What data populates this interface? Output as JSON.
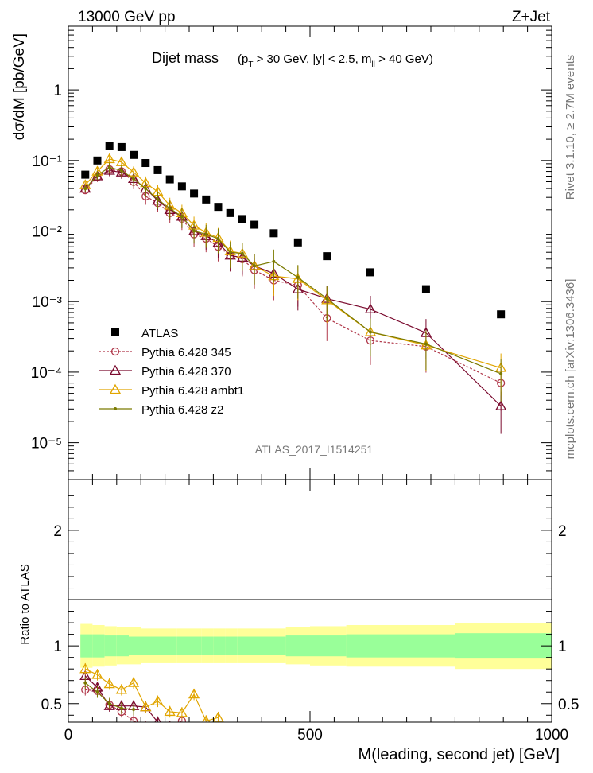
{
  "header": {
    "left": "13000 GeV pp",
    "right": "Z+Jet"
  },
  "side_labels": {
    "rivet": "Rivet 3.1.10, ≥ 2.7M events",
    "mcplots": "mcplots.cern.ch [arXiv:1306.3436]"
  },
  "analysis_id": "ATLAS_2017_I1514251",
  "colors": {
    "atlas": "#000000",
    "p345": "#b0384a",
    "p370": "#7a0a2e",
    "ambt1": "#e1a500",
    "z2": "#7a7a00",
    "band_outer": "#ffff99",
    "band_inner": "#99ff99"
  },
  "chart_data": [
    {
      "type": "scatter",
      "title_main": "Dijet mass",
      "title_cut": "(p_T > 30 GeV, |y| < 2.5, m_ll > 40 GeV)",
      "ylabel": "dσ/dM [pb/GeV]",
      "xlabel": "M(leading, second jet) [GeV]",
      "xlim": [
        0,
        1000
      ],
      "ylim": [
        3e-06,
        8
      ],
      "yscale": "log",
      "ytick_labels": [
        "10⁻⁵",
        "10⁻⁴",
        "10⁻³",
        "10⁻²",
        "10⁻¹",
        "1"
      ],
      "x": [
        35,
        60,
        85,
        110,
        135,
        160,
        185,
        210,
        235,
        260,
        285,
        310,
        335,
        360,
        385,
        425,
        475,
        535,
        625,
        740,
        895
      ],
      "series": [
        {
          "name": "ATLAS",
          "key": "atlas",
          "style": "square",
          "values": [
            0.063,
            0.1,
            0.16,
            0.155,
            0.12,
            0.092,
            0.073,
            0.054,
            0.043,
            0.034,
            0.028,
            0.022,
            0.018,
            0.0148,
            0.0123,
            0.0093,
            0.0069,
            0.0044,
            0.0026,
            0.0015,
            0.00066
          ]
        },
        {
          "name": "Pythia 6.428 345",
          "key": "p345",
          "style": "circle",
          "values": [
            0.038,
            0.058,
            0.075,
            0.07,
            0.05,
            0.031,
            0.025,
            0.018,
            0.015,
            0.009,
            0.0078,
            0.006,
            0.0045,
            0.004,
            0.0028,
            0.002,
            0.0017,
            0.00058,
            0.00028,
            0.00023,
            7e-05
          ]
        },
        {
          "name": "Pythia 6.428 370",
          "key": "p370",
          "style": "triangle",
          "values": [
            0.04,
            0.06,
            0.072,
            0.068,
            0.055,
            0.04,
            0.027,
            0.02,
            0.016,
            0.01,
            0.0085,
            0.0068,
            0.0045,
            0.0042,
            0.0032,
            0.0025,
            0.0015,
            0.0011,
            0.00078,
            0.00036,
            3.3e-05
          ]
        },
        {
          "name": "Pythia 6.428 ambt1",
          "key": "ambt1",
          "style": "triangle",
          "values": [
            0.045,
            0.07,
            0.105,
            0.095,
            0.068,
            0.048,
            0.036,
            0.023,
            0.018,
            0.012,
            0.0095,
            0.008,
            0.0052,
            0.0048,
            0.0032,
            0.0023,
            0.0021,
            0.00105,
            0.00037,
            0.00024,
            0.000115
          ]
        },
        {
          "name": "Pythia 6.428 z2",
          "key": "z2",
          "style": "dot",
          "values": [
            0.04,
            0.062,
            0.08,
            0.072,
            0.055,
            0.04,
            0.028,
            0.021,
            0.016,
            0.01,
            0.009,
            0.0078,
            0.005,
            0.0048,
            0.0032,
            0.0037,
            0.0022,
            0.0011,
            0.00037,
            0.00025,
            9.5e-05
          ]
        }
      ]
    },
    {
      "type": "scatter",
      "ylabel": "Ratio to ATLAS",
      "xlim": [
        0,
        1000
      ],
      "ylim": [
        0.34,
        2.44
      ],
      "ytick_labels": [
        "0.5",
        "1",
        "2"
      ],
      "xtick_labels": [
        "0",
        "500",
        "1000"
      ],
      "band_edges": [
        25,
        50,
        75,
        100,
        125,
        150,
        175,
        200,
        225,
        250,
        275,
        300,
        325,
        350,
        375,
        400,
        450,
        500,
        575,
        800,
        1000
      ],
      "band_outer_halfwidth": [
        0.19,
        0.18,
        0.17,
        0.16,
        0.16,
        0.15,
        0.15,
        0.15,
        0.15,
        0.15,
        0.15,
        0.15,
        0.15,
        0.15,
        0.15,
        0.15,
        0.16,
        0.17,
        0.18,
        0.2
      ],
      "band_inner_halfwidth": [
        0.1,
        0.1,
        0.09,
        0.09,
        0.08,
        0.08,
        0.08,
        0.08,
        0.08,
        0.08,
        0.08,
        0.08,
        0.08,
        0.08,
        0.08,
        0.08,
        0.09,
        0.09,
        0.1,
        0.11
      ],
      "series": [
        {
          "key": "p345",
          "style": "circle",
          "x": [
            35,
            60,
            85,
            110,
            135,
            160,
            185,
            210,
            235
          ],
          "values": [
            0.62,
            0.61,
            0.49,
            0.43,
            0.35,
            0.3,
            0.3,
            0.3,
            0.35
          ]
        },
        {
          "key": "p370",
          "style": "triangle",
          "x": [
            35,
            60,
            85,
            110,
            135,
            160,
            185,
            210
          ],
          "values": [
            0.74,
            0.64,
            0.48,
            0.48,
            0.48,
            0.47,
            0.34,
            0.3
          ]
        },
        {
          "key": "ambt1",
          "style": "triangle",
          "x": [
            35,
            60,
            85,
            110,
            135,
            160,
            185,
            210,
            235,
            260,
            285,
            310
          ],
          "values": [
            0.8,
            0.75,
            0.67,
            0.62,
            0.68,
            0.47,
            0.52,
            0.43,
            0.42,
            0.58,
            0.35,
            0.38
          ]
        },
        {
          "key": "z2",
          "style": "dot",
          "x": [
            35,
            60,
            85,
            110,
            135
          ],
          "values": [
            0.68,
            0.6,
            0.5,
            0.46,
            0.45
          ]
        }
      ]
    }
  ]
}
